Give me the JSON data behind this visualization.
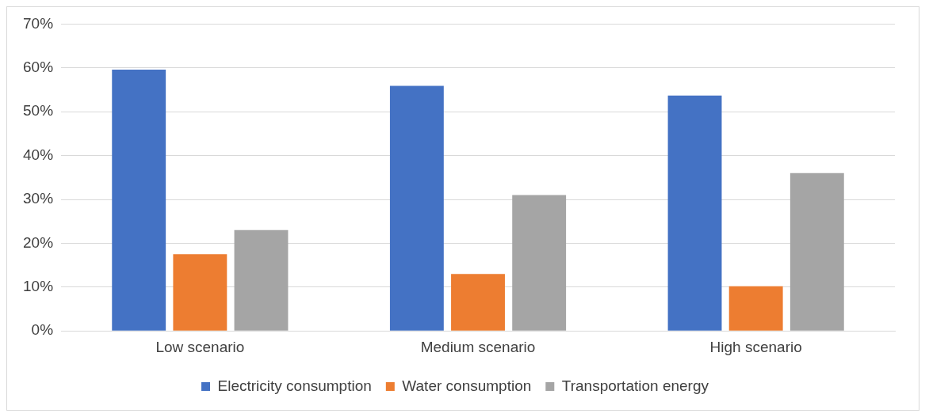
{
  "chart_data": {
    "type": "bar",
    "categories": [
      "Low scenario",
      "Medium scenario",
      "High scenario"
    ],
    "series": [
      {
        "name": "Electricity consumption",
        "color": "#4472c4",
        "values": [
          59.6,
          55.9,
          53.7
        ]
      },
      {
        "name": "Water consumption",
        "color": "#ed7d31",
        "values": [
          17.5,
          13,
          10.2
        ]
      },
      {
        "name": "Transportation energy",
        "color": "#a5a5a5",
        "values": [
          23,
          31,
          36
        ]
      }
    ],
    "ylim": [
      0,
      70
    ],
    "yticks": [
      {
        "value": 0,
        "label": "0%"
      },
      {
        "value": 10,
        "label": "10%"
      },
      {
        "value": 20,
        "label": "20%"
      },
      {
        "value": 30,
        "label": "30%"
      },
      {
        "value": 40,
        "label": "40%"
      },
      {
        "value": 50,
        "label": "50%"
      },
      {
        "value": 60,
        "label": "60%"
      },
      {
        "value": 70,
        "label": "70%"
      }
    ],
    "grid": "y",
    "legend": "bottom"
  }
}
